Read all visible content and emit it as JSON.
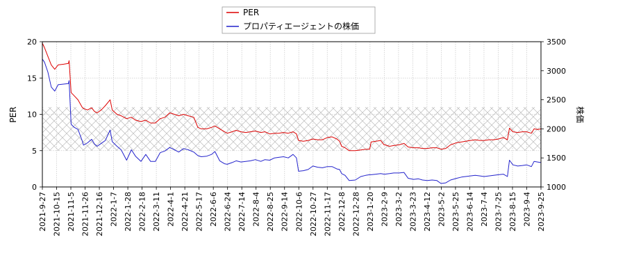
{
  "chart_data": {
    "type": "line",
    "title": "",
    "xlabel": "",
    "ylabel_left": "PER",
    "ylabel_right": "株価",
    "ylim_left": [
      0,
      20
    ],
    "ylim_right": [
      1000,
      3500
    ],
    "yticks_left": [
      "0",
      "5",
      "10",
      "15",
      "20"
    ],
    "yticks_right": [
      "1000",
      "1500",
      "2000",
      "2500",
      "3000",
      "3500"
    ],
    "x_range": [
      "2021-09-27",
      "2023-09-25"
    ],
    "x_ticks": [
      "2021-9-27",
      "2021-10-15",
      "2021-11-5",
      "2021-11-26",
      "2021-12-16",
      "2022-1-7",
      "2022-1-28",
      "2022-2-18",
      "2022-3-11",
      "2022-4-1",
      "2022-4-21",
      "2022-5-17",
      "2022-6-6",
      "2022-6-24",
      "2022-7-14",
      "2022-8-4",
      "2022-8-25",
      "2022-9-14",
      "2022-10-6",
      "2022-10-27",
      "2022-11-17",
      "2022-12-8",
      "2022-12-28",
      "2023-1-20",
      "2023-2-9",
      "2023-3-2",
      "2023-3-23",
      "2023-4-12",
      "2023-5-2",
      "2023-5-25",
      "2023-6-14",
      "2023-7-4",
      "2023-7-25",
      "2023-8-15",
      "2023-9-4",
      "2023-9-25"
    ],
    "grid": true,
    "legend_position": "top-center",
    "shaded_band_left": [
      5,
      11
    ],
    "series": [
      {
        "name": "PER",
        "axis": "left",
        "color": "#dd0000",
        "points": [
          [
            "2021-09-27",
            19.8
          ],
          [
            "2021-09-30",
            19.2
          ],
          [
            "2021-10-05",
            18.0
          ],
          [
            "2021-10-10",
            16.8
          ],
          [
            "2021-10-15",
            16.2
          ],
          [
            "2021-10-20",
            16.8
          ],
          [
            "2021-10-28",
            16.9
          ],
          [
            "2021-11-04",
            17.0
          ],
          [
            "2021-11-05",
            17.4
          ],
          [
            "2021-11-08",
            13.0
          ],
          [
            "2021-11-12",
            12.6
          ],
          [
            "2021-11-18",
            12.0
          ],
          [
            "2021-11-24",
            11.0
          ],
          [
            "2021-11-26",
            10.8
          ],
          [
            "2021-12-02",
            10.6
          ],
          [
            "2021-12-08",
            10.9
          ],
          [
            "2021-12-12",
            10.4
          ],
          [
            "2021-12-16",
            10.2
          ],
          [
            "2021-12-22",
            10.6
          ],
          [
            "2021-12-28",
            11.2
          ],
          [
            "2022-01-04",
            12.0
          ],
          [
            "2022-01-07",
            10.6
          ],
          [
            "2022-01-14",
            10.0
          ],
          [
            "2022-01-20",
            9.8
          ],
          [
            "2022-01-28",
            9.4
          ],
          [
            "2022-02-04",
            9.6
          ],
          [
            "2022-02-10",
            9.2
          ],
          [
            "2022-02-18",
            9.0
          ],
          [
            "2022-02-25",
            9.2
          ],
          [
            "2022-03-04",
            8.8
          ],
          [
            "2022-03-11",
            8.8
          ],
          [
            "2022-03-18",
            9.4
          ],
          [
            "2022-03-25",
            9.6
          ],
          [
            "2022-04-01",
            10.2
          ],
          [
            "2022-04-08",
            10.0
          ],
          [
            "2022-04-14",
            9.8
          ],
          [
            "2022-04-21",
            10.0
          ],
          [
            "2022-04-28",
            9.8
          ],
          [
            "2022-05-06",
            9.6
          ],
          [
            "2022-05-12",
            8.2
          ],
          [
            "2022-05-17",
            8.0
          ],
          [
            "2022-05-25",
            8.0
          ],
          [
            "2022-06-01",
            8.2
          ],
          [
            "2022-06-06",
            8.4
          ],
          [
            "2022-06-13",
            8.0
          ],
          [
            "2022-06-20",
            7.6
          ],
          [
            "2022-06-24",
            7.4
          ],
          [
            "2022-07-01",
            7.6
          ],
          [
            "2022-07-07",
            7.8
          ],
          [
            "2022-07-14",
            7.6
          ],
          [
            "2022-07-21",
            7.5
          ],
          [
            "2022-07-28",
            7.6
          ],
          [
            "2022-08-04",
            7.7
          ],
          [
            "2022-08-12",
            7.5
          ],
          [
            "2022-08-18",
            7.6
          ],
          [
            "2022-08-25",
            7.3
          ],
          [
            "2022-09-01",
            7.4
          ],
          [
            "2022-09-07",
            7.4
          ],
          [
            "2022-09-14",
            7.5
          ],
          [
            "2022-09-21",
            7.4
          ],
          [
            "2022-09-28",
            7.6
          ],
          [
            "2022-10-03",
            7.3
          ],
          [
            "2022-10-06",
            6.4
          ],
          [
            "2022-10-13",
            6.3
          ],
          [
            "2022-10-20",
            6.4
          ],
          [
            "2022-10-27",
            6.6
          ],
          [
            "2022-11-03",
            6.5
          ],
          [
            "2022-11-10",
            6.5
          ],
          [
            "2022-11-17",
            6.8
          ],
          [
            "2022-11-24",
            6.9
          ],
          [
            "2022-12-01",
            6.6
          ],
          [
            "2022-12-05",
            6.3
          ],
          [
            "2022-12-08",
            5.6
          ],
          [
            "2022-12-13",
            5.4
          ],
          [
            "2022-12-19",
            5.0
          ],
          [
            "2022-12-28",
            5.0
          ],
          [
            "2023-01-05",
            5.1
          ],
          [
            "2023-01-12",
            5.2
          ],
          [
            "2023-01-18",
            5.2
          ],
          [
            "2023-01-20",
            6.2
          ],
          [
            "2023-01-27",
            6.3
          ],
          [
            "2023-02-03",
            6.4
          ],
          [
            "2023-02-08",
            5.8
          ],
          [
            "2023-02-09",
            5.8
          ],
          [
            "2023-02-16",
            5.6
          ],
          [
            "2023-02-22",
            5.7
          ],
          [
            "2023-03-02",
            5.8
          ],
          [
            "2023-03-09",
            6.0
          ],
          [
            "2023-03-15",
            5.5
          ],
          [
            "2023-03-23",
            5.4
          ],
          [
            "2023-03-30",
            5.4
          ],
          [
            "2023-04-05",
            5.3
          ],
          [
            "2023-04-12",
            5.3
          ],
          [
            "2023-04-19",
            5.4
          ],
          [
            "2023-04-26",
            5.4
          ],
          [
            "2023-05-02",
            5.2
          ],
          [
            "2023-05-09",
            5.3
          ],
          [
            "2023-05-16",
            5.8
          ],
          [
            "2023-05-25",
            6.1
          ],
          [
            "2023-06-01",
            6.2
          ],
          [
            "2023-06-07",
            6.3
          ],
          [
            "2023-06-14",
            6.4
          ],
          [
            "2023-06-21",
            6.5
          ],
          [
            "2023-06-28",
            6.4
          ],
          [
            "2023-07-04",
            6.4
          ],
          [
            "2023-07-11",
            6.5
          ],
          [
            "2023-07-18",
            6.5
          ],
          [
            "2023-07-25",
            6.6
          ],
          [
            "2023-08-01",
            6.8
          ],
          [
            "2023-08-07",
            6.5
          ],
          [
            "2023-08-10",
            8.1
          ],
          [
            "2023-08-15",
            7.6
          ],
          [
            "2023-08-22",
            7.5
          ],
          [
            "2023-08-29",
            7.6
          ],
          [
            "2023-09-04",
            7.6
          ],
          [
            "2023-09-11",
            7.4
          ],
          [
            "2023-09-15",
            8.0
          ],
          [
            "2023-09-20",
            7.9
          ],
          [
            "2023-09-25",
            8.0
          ]
        ]
      },
      {
        "name": "プロパティエージェントの株価",
        "axis": "right",
        "color": "#2222cc",
        "points": [
          [
            "2021-09-27",
            3200
          ],
          [
            "2021-09-30",
            3150
          ],
          [
            "2021-10-05",
            2980
          ],
          [
            "2021-10-10",
            2720
          ],
          [
            "2021-10-15",
            2650
          ],
          [
            "2021-10-20",
            2760
          ],
          [
            "2021-10-28",
            2770
          ],
          [
            "2021-11-04",
            2780
          ],
          [
            "2021-11-05",
            2830
          ],
          [
            "2021-11-08",
            2080
          ],
          [
            "2021-11-12",
            2030
          ],
          [
            "2021-11-18",
            1990
          ],
          [
            "2021-11-24",
            1800
          ],
          [
            "2021-11-26",
            1720
          ],
          [
            "2021-12-02",
            1760
          ],
          [
            "2021-12-08",
            1820
          ],
          [
            "2021-12-12",
            1740
          ],
          [
            "2021-12-16",
            1700
          ],
          [
            "2021-12-22",
            1750
          ],
          [
            "2021-12-28",
            1800
          ],
          [
            "2022-01-04",
            1980
          ],
          [
            "2022-01-07",
            1780
          ],
          [
            "2022-01-14",
            1700
          ],
          [
            "2022-01-20",
            1640
          ],
          [
            "2022-01-28",
            1460
          ],
          [
            "2022-02-04",
            1640
          ],
          [
            "2022-02-10",
            1530
          ],
          [
            "2022-02-18",
            1440
          ],
          [
            "2022-02-25",
            1560
          ],
          [
            "2022-03-04",
            1440
          ],
          [
            "2022-03-11",
            1440
          ],
          [
            "2022-03-18",
            1590
          ],
          [
            "2022-03-25",
            1620
          ],
          [
            "2022-04-01",
            1680
          ],
          [
            "2022-04-08",
            1640
          ],
          [
            "2022-04-14",
            1600
          ],
          [
            "2022-04-21",
            1660
          ],
          [
            "2022-04-28",
            1640
          ],
          [
            "2022-05-06",
            1600
          ],
          [
            "2022-05-12",
            1540
          ],
          [
            "2022-05-17",
            1520
          ],
          [
            "2022-05-25",
            1530
          ],
          [
            "2022-06-01",
            1560
          ],
          [
            "2022-06-06",
            1610
          ],
          [
            "2022-06-13",
            1450
          ],
          [
            "2022-06-20",
            1400
          ],
          [
            "2022-06-24",
            1390
          ],
          [
            "2022-07-01",
            1420
          ],
          [
            "2022-07-07",
            1450
          ],
          [
            "2022-07-14",
            1430
          ],
          [
            "2022-07-21",
            1440
          ],
          [
            "2022-07-28",
            1450
          ],
          [
            "2022-08-04",
            1470
          ],
          [
            "2022-08-12",
            1440
          ],
          [
            "2022-08-18",
            1470
          ],
          [
            "2022-08-25",
            1460
          ],
          [
            "2022-09-01",
            1500
          ],
          [
            "2022-09-07",
            1510
          ],
          [
            "2022-09-14",
            1520
          ],
          [
            "2022-09-21",
            1500
          ],
          [
            "2022-09-28",
            1560
          ],
          [
            "2022-10-03",
            1500
          ],
          [
            "2022-10-06",
            1270
          ],
          [
            "2022-10-13",
            1280
          ],
          [
            "2022-10-20",
            1300
          ],
          [
            "2022-10-27",
            1360
          ],
          [
            "2022-11-03",
            1340
          ],
          [
            "2022-11-10",
            1330
          ],
          [
            "2022-11-17",
            1350
          ],
          [
            "2022-11-24",
            1350
          ],
          [
            "2022-12-01",
            1310
          ],
          [
            "2022-12-05",
            1300
          ],
          [
            "2022-12-08",
            1230
          ],
          [
            "2022-12-13",
            1200
          ],
          [
            "2022-12-19",
            1110
          ],
          [
            "2022-12-28",
            1120
          ],
          [
            "2023-01-05",
            1180
          ],
          [
            "2023-01-12",
            1200
          ],
          [
            "2023-01-18",
            1210
          ],
          [
            "2023-01-20",
            1210
          ],
          [
            "2023-01-27",
            1220
          ],
          [
            "2023-02-03",
            1230
          ],
          [
            "2023-02-08",
            1220
          ],
          [
            "2023-02-09",
            1220
          ],
          [
            "2023-02-16",
            1230
          ],
          [
            "2023-02-22",
            1240
          ],
          [
            "2023-03-02",
            1240
          ],
          [
            "2023-03-09",
            1250
          ],
          [
            "2023-03-15",
            1150
          ],
          [
            "2023-03-23",
            1130
          ],
          [
            "2023-03-30",
            1140
          ],
          [
            "2023-04-05",
            1120
          ],
          [
            "2023-04-12",
            1110
          ],
          [
            "2023-04-19",
            1120
          ],
          [
            "2023-04-26",
            1110
          ],
          [
            "2023-05-02",
            1060
          ],
          [
            "2023-05-09",
            1070
          ],
          [
            "2023-05-16",
            1120
          ],
          [
            "2023-05-25",
            1150
          ],
          [
            "2023-06-01",
            1170
          ],
          [
            "2023-06-07",
            1180
          ],
          [
            "2023-06-14",
            1190
          ],
          [
            "2023-06-21",
            1200
          ],
          [
            "2023-06-28",
            1190
          ],
          [
            "2023-07-04",
            1180
          ],
          [
            "2023-07-11",
            1190
          ],
          [
            "2023-07-18",
            1200
          ],
          [
            "2023-07-25",
            1210
          ],
          [
            "2023-08-01",
            1220
          ],
          [
            "2023-08-07",
            1180
          ],
          [
            "2023-08-10",
            1460
          ],
          [
            "2023-08-15",
            1380
          ],
          [
            "2023-08-22",
            1360
          ],
          [
            "2023-08-29",
            1370
          ],
          [
            "2023-09-04",
            1380
          ],
          [
            "2023-09-11",
            1350
          ],
          [
            "2023-09-15",
            1440
          ],
          [
            "2023-09-20",
            1430
          ],
          [
            "2023-09-25",
            1420
          ]
        ]
      }
    ]
  }
}
